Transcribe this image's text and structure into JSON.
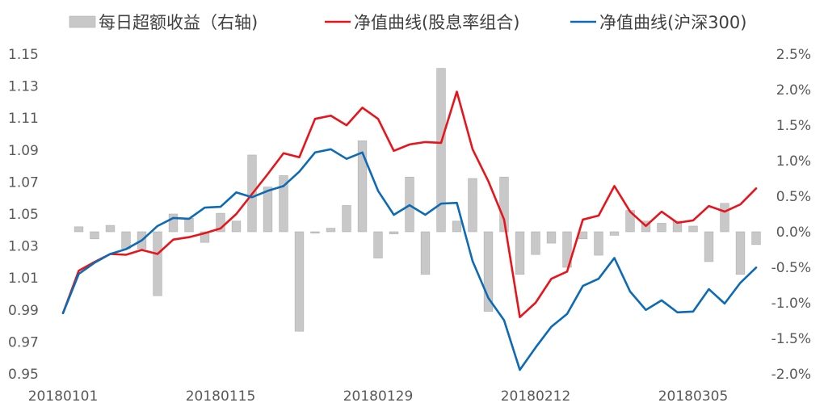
{
  "chart_data": {
    "type": "bar+line",
    "legend": [
      {
        "label": "每日超额收益（右轴)",
        "kind": "bar",
        "color": "#c8c8c8"
      },
      {
        "label": "净值曲线(股息率组合)",
        "kind": "line",
        "color": "#e8141b"
      },
      {
        "label": "净值曲线(沪深300)",
        "kind": "line",
        "color": "#0d6ab4"
      }
    ],
    "y_left": {
      "min": 0.95,
      "max": 1.15,
      "ticks": [
        "0.95",
        "0.97",
        "0.99",
        "1.01",
        "1.03",
        "1.05",
        "1.07",
        "1.09",
        "1.11",
        "1.13",
        "1.15"
      ]
    },
    "y_right": {
      "min": -2.0,
      "max": 2.5,
      "ticks": [
        "-2.0%",
        "-1.5%",
        "-1.0%",
        "-0.5%",
        "0.0%",
        "0.5%",
        "1.0%",
        "1.5%",
        "2.0%",
        "2.5%"
      ]
    },
    "x_tick_labels": [
      {
        "index": 0,
        "label": "20180101"
      },
      {
        "index": 10,
        "label": "20180115"
      },
      {
        "index": 20,
        "label": "20180129"
      },
      {
        "index": 30,
        "label": "20180212"
      },
      {
        "index": 40,
        "label": "20180305"
      }
    ],
    "points": 45,
    "series": [
      {
        "name": "每日超额收益（右轴)",
        "axis": "right",
        "kind": "bar",
        "values": [
          0.0,
          0.07,
          -0.1,
          0.09,
          -0.24,
          -0.24,
          -0.9,
          0.25,
          0.19,
          -0.15,
          0.26,
          0.15,
          1.08,
          0.63,
          0.79,
          -1.4,
          -0.02,
          0.05,
          0.37,
          1.28,
          -0.37,
          -0.03,
          0.77,
          -0.6,
          2.3,
          0.15,
          0.75,
          -1.12,
          0.77,
          -0.6,
          -0.32,
          -0.16,
          -0.5,
          -0.1,
          -0.33,
          -0.05,
          0.3,
          0.15,
          0.12,
          0.15,
          0.08,
          -0.42,
          0.4,
          -0.6,
          -0.18
        ]
      },
      {
        "name": "净值曲线(股息率组合)",
        "axis": "left",
        "kind": "line",
        "values": [
          0.988,
          1.0145,
          1.02,
          1.025,
          1.0245,
          1.0275,
          1.025,
          1.034,
          1.0355,
          1.038,
          1.041,
          1.05,
          1.0625,
          1.075,
          1.088,
          1.0855,
          1.1095,
          1.1115,
          1.1055,
          1.1165,
          1.1095,
          1.0895,
          1.0935,
          1.095,
          1.0945,
          1.1265,
          1.0905,
          1.0705,
          1.0465,
          0.9855,
          0.9945,
          1.0095,
          1.014,
          1.0465,
          1.049,
          1.0675,
          1.0515,
          1.0425,
          1.0515,
          1.0445,
          1.046,
          1.055,
          1.0515,
          1.056,
          1.066
        ]
      },
      {
        "name": "净值曲线(沪深300)",
        "axis": "left",
        "kind": "line",
        "values": [
          0.988,
          1.0125,
          1.0195,
          1.025,
          1.028,
          1.0335,
          1.0425,
          1.0475,
          1.047,
          1.054,
          1.0545,
          1.0635,
          1.0605,
          1.0645,
          1.0675,
          1.0765,
          1.0885,
          1.0905,
          1.0845,
          1.0885,
          1.0645,
          1.0495,
          1.0555,
          1.0495,
          1.0565,
          1.057,
          1.0205,
          0.9975,
          0.9835,
          0.9525,
          0.9665,
          0.9795,
          0.9875,
          1.005,
          1.0095,
          1.0225,
          1.0015,
          0.99,
          0.996,
          0.9885,
          0.989,
          1.003,
          0.994,
          1.007,
          1.0165
        ]
      }
    ]
  }
}
